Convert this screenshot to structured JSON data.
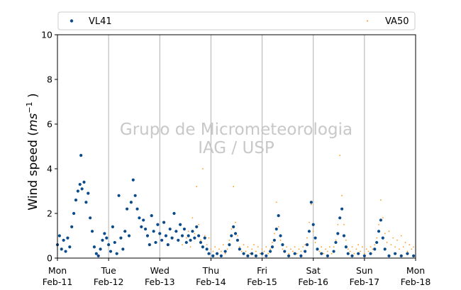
{
  "chart_data": {
    "type": "scatter",
    "ylabel_text": "Wind speed (",
    "ylabel_unit_base": "ms",
    "ylabel_unit_exp": "−1",
    "ylabel_close": " )",
    "ylim": [
      0,
      10
    ],
    "y_ticks": [
      "0",
      "2",
      "4",
      "6",
      "8",
      "10"
    ],
    "x_range_days": [
      0,
      7
    ],
    "x_ticks": [
      {
        "day": 0,
        "line1": "Mon",
        "line2": "Feb-11"
      },
      {
        "day": 1,
        "line1": "Tue",
        "line2": "Feb-12"
      },
      {
        "day": 2,
        "line1": "Wed",
        "line2": "Feb-13"
      },
      {
        "day": 3,
        "line1": "Thu",
        "line2": "Feb-14"
      },
      {
        "day": 4,
        "line1": "Fri",
        "line2": "Feb-15"
      },
      {
        "day": 5,
        "line1": "Sat",
        "line2": "Feb-16"
      },
      {
        "day": 6,
        "line1": "Sun",
        "line2": "Feb-17"
      },
      {
        "day": 7,
        "line1": "Mon",
        "line2": "Feb-18"
      }
    ],
    "grid": "vertical",
    "legend_position": "top",
    "watermark_line1": "Grupo de Micrometeorologia",
    "watermark_line2": "IAG / USP",
    "series": [
      {
        "name": "VL41",
        "color": "#0b4a8b",
        "marker": "dot-large",
        "points": [
          [
            0.0,
            0.6
          ],
          [
            0.04,
            1.0
          ],
          [
            0.08,
            0.4
          ],
          [
            0.12,
            0.8
          ],
          [
            0.16,
            0.3
          ],
          [
            0.2,
            0.9
          ],
          [
            0.24,
            0.5
          ],
          [
            0.28,
            1.4
          ],
          [
            0.32,
            2.0
          ],
          [
            0.36,
            2.6
          ],
          [
            0.4,
            3.0
          ],
          [
            0.44,
            3.3
          ],
          [
            0.46,
            4.6
          ],
          [
            0.48,
            3.1
          ],
          [
            0.52,
            3.4
          ],
          [
            0.56,
            2.5
          ],
          [
            0.6,
            2.9
          ],
          [
            0.64,
            1.8
          ],
          [
            0.68,
            1.2
          ],
          [
            0.72,
            0.5
          ],
          [
            0.76,
            0.2
          ],
          [
            0.8,
            0.1
          ],
          [
            0.84,
            0.4
          ],
          [
            0.88,
            0.8
          ],
          [
            0.92,
            1.1
          ],
          [
            0.96,
            0.9
          ],
          [
            1.0,
            0.6
          ],
          [
            1.04,
            0.3
          ],
          [
            1.08,
            1.4
          ],
          [
            1.12,
            0.7
          ],
          [
            1.16,
            0.2
          ],
          [
            1.2,
            2.8
          ],
          [
            1.24,
            0.9
          ],
          [
            1.28,
            0.4
          ],
          [
            1.32,
            1.2
          ],
          [
            1.36,
            2.2
          ],
          [
            1.4,
            1.0
          ],
          [
            1.44,
            2.5
          ],
          [
            1.48,
            3.5
          ],
          [
            1.52,
            2.8
          ],
          [
            1.56,
            2.2
          ],
          [
            1.6,
            1.8
          ],
          [
            1.64,
            1.4
          ],
          [
            1.68,
            1.7
          ],
          [
            1.72,
            1.3
          ],
          [
            1.76,
            1.0
          ],
          [
            1.8,
            0.6
          ],
          [
            1.84,
            1.9
          ],
          [
            1.88,
            1.2
          ],
          [
            1.92,
            0.7
          ],
          [
            1.96,
            1.5
          ],
          [
            2.0,
            1.1
          ],
          [
            2.04,
            0.8
          ],
          [
            2.08,
            1.6
          ],
          [
            2.12,
            1.0
          ],
          [
            2.16,
            0.6
          ],
          [
            2.2,
            1.3
          ],
          [
            2.24,
            0.9
          ],
          [
            2.28,
            2.0
          ],
          [
            2.32,
            1.2
          ],
          [
            2.36,
            0.8
          ],
          [
            2.4,
            1.5
          ],
          [
            2.44,
            1.0
          ],
          [
            2.48,
            1.3
          ],
          [
            2.52,
            0.7
          ],
          [
            2.56,
            1.0
          ],
          [
            2.6,
            0.8
          ],
          [
            2.64,
            1.2
          ],
          [
            2.68,
            0.9
          ],
          [
            2.72,
            1.4
          ],
          [
            2.76,
            1.0
          ],
          [
            2.8,
            0.7
          ],
          [
            2.84,
            0.5
          ],
          [
            2.88,
            0.9
          ],
          [
            2.92,
            0.4
          ],
          [
            2.96,
            0.2
          ],
          [
            3.04,
            0.1
          ],
          [
            3.12,
            0.2
          ],
          [
            3.2,
            0.1
          ],
          [
            3.28,
            0.3
          ],
          [
            3.36,
            0.6
          ],
          [
            3.4,
            1.0
          ],
          [
            3.44,
            1.4
          ],
          [
            3.48,
            1.1
          ],
          [
            3.52,
            0.8
          ],
          [
            3.56,
            0.4
          ],
          [
            3.64,
            0.2
          ],
          [
            3.72,
            0.1
          ],
          [
            3.8,
            0.2
          ],
          [
            3.88,
            0.1
          ],
          [
            4.0,
            0.2
          ],
          [
            4.08,
            0.1
          ],
          [
            4.16,
            0.3
          ],
          [
            4.2,
            0.5
          ],
          [
            4.24,
            0.8
          ],
          [
            4.28,
            1.3
          ],
          [
            4.32,
            1.9
          ],
          [
            4.36,
            1.0
          ],
          [
            4.4,
            0.6
          ],
          [
            4.44,
            0.3
          ],
          [
            4.52,
            0.1
          ],
          [
            4.64,
            0.2
          ],
          [
            4.76,
            0.1
          ],
          [
            4.84,
            0.3
          ],
          [
            4.88,
            0.6
          ],
          [
            4.92,
            1.2
          ],
          [
            4.96,
            2.5
          ],
          [
            5.0,
            1.5
          ],
          [
            5.04,
            0.9
          ],
          [
            5.08,
            0.4
          ],
          [
            5.16,
            0.2
          ],
          [
            5.28,
            0.1
          ],
          [
            5.4,
            0.3
          ],
          [
            5.44,
            0.7
          ],
          [
            5.48,
            1.1
          ],
          [
            5.52,
            1.8
          ],
          [
            5.56,
            2.2
          ],
          [
            5.6,
            1.0
          ],
          [
            5.64,
            0.5
          ],
          [
            5.68,
            0.2
          ],
          [
            5.76,
            0.1
          ],
          [
            5.88,
            0.2
          ],
          [
            6.0,
            0.1
          ],
          [
            6.12,
            0.2
          ],
          [
            6.2,
            0.4
          ],
          [
            6.24,
            0.7
          ],
          [
            6.28,
            1.2
          ],
          [
            6.32,
            1.7
          ],
          [
            6.36,
            0.9
          ],
          [
            6.4,
            0.4
          ],
          [
            6.48,
            0.1
          ],
          [
            6.6,
            0.2
          ],
          [
            6.72,
            0.1
          ],
          [
            6.84,
            0.2
          ],
          [
            6.96,
            0.1
          ]
        ]
      },
      {
        "name": "VA50",
        "color": "#ff9a1a",
        "marker": "dot-small",
        "points": [
          [
            2.44,
            0.6
          ],
          [
            2.52,
            0.9
          ],
          [
            2.56,
            1.2
          ],
          [
            2.6,
            0.5
          ],
          [
            2.64,
            1.8
          ],
          [
            2.68,
            1.1
          ],
          [
            2.72,
            3.2
          ],
          [
            2.76,
            1.5
          ],
          [
            2.8,
            0.8
          ],
          [
            2.84,
            4.0
          ],
          [
            2.88,
            1.0
          ],
          [
            2.92,
            0.6
          ],
          [
            2.96,
            0.9
          ],
          [
            3.0,
            0.4
          ],
          [
            3.04,
            0.3
          ],
          [
            3.08,
            0.5
          ],
          [
            3.12,
            0.2
          ],
          [
            3.16,
            0.4
          ],
          [
            3.2,
            0.3
          ],
          [
            3.24,
            0.6
          ],
          [
            3.28,
            0.2
          ],
          [
            3.32,
            0.4
          ],
          [
            3.36,
            0.8
          ],
          [
            3.4,
            1.3
          ],
          [
            3.44,
            3.2
          ],
          [
            3.48,
            1.6
          ],
          [
            3.52,
            1.0
          ],
          [
            3.56,
            0.5
          ],
          [
            3.6,
            0.3
          ],
          [
            3.64,
            0.6
          ],
          [
            3.68,
            0.3
          ],
          [
            3.72,
            0.5
          ],
          [
            3.76,
            0.2
          ],
          [
            3.8,
            0.4
          ],
          [
            3.84,
            0.6
          ],
          [
            3.88,
            0.3
          ],
          [
            3.92,
            0.5
          ],
          [
            3.96,
            0.2
          ],
          [
            4.0,
            0.4
          ],
          [
            4.04,
            0.3
          ],
          [
            4.08,
            0.5
          ],
          [
            4.12,
            0.2
          ],
          [
            4.16,
            0.4
          ],
          [
            4.2,
            0.7
          ],
          [
            4.24,
            1.1
          ],
          [
            4.28,
            2.5
          ],
          [
            4.32,
            1.4
          ],
          [
            4.36,
            0.8
          ],
          [
            4.4,
            0.4
          ],
          [
            4.44,
            0.3
          ],
          [
            4.48,
            0.5
          ],
          [
            4.52,
            0.2
          ],
          [
            4.56,
            0.4
          ],
          [
            4.6,
            0.3
          ],
          [
            4.64,
            0.5
          ],
          [
            4.68,
            0.2
          ],
          [
            4.72,
            0.4
          ],
          [
            4.76,
            0.3
          ],
          [
            4.8,
            0.5
          ],
          [
            4.84,
            0.6
          ],
          [
            4.88,
            0.9
          ],
          [
            4.92,
            1.6
          ],
          [
            4.96,
            2.4
          ],
          [
            5.0,
            1.2
          ],
          [
            5.04,
            0.7
          ],
          [
            5.08,
            0.4
          ],
          [
            5.12,
            0.3
          ],
          [
            5.16,
            0.5
          ],
          [
            5.2,
            0.2
          ],
          [
            5.24,
            0.4
          ],
          [
            5.28,
            0.3
          ],
          [
            5.32,
            0.5
          ],
          [
            5.36,
            0.2
          ],
          [
            5.4,
            0.5
          ],
          [
            5.44,
            0.8
          ],
          [
            5.48,
            1.5
          ],
          [
            5.52,
            4.6
          ],
          [
            5.56,
            2.8
          ],
          [
            5.6,
            1.5
          ],
          [
            5.64,
            0.8
          ],
          [
            5.68,
            0.4
          ],
          [
            5.72,
            0.3
          ],
          [
            5.76,
            0.5
          ],
          [
            5.8,
            0.2
          ],
          [
            5.84,
            0.4
          ],
          [
            5.88,
            0.6
          ],
          [
            5.92,
            0.3
          ],
          [
            5.96,
            0.5
          ],
          [
            6.0,
            0.2
          ],
          [
            6.04,
            0.4
          ],
          [
            6.08,
            0.3
          ],
          [
            6.12,
            0.5
          ],
          [
            6.16,
            0.4
          ],
          [
            6.2,
            0.6
          ],
          [
            6.24,
            0.9
          ],
          [
            6.28,
            1.5
          ],
          [
            6.32,
            2.6
          ],
          [
            6.36,
            1.8
          ],
          [
            6.4,
            1.1
          ],
          [
            6.44,
            0.7
          ],
          [
            6.48,
            1.2
          ],
          [
            6.52,
            0.6
          ],
          [
            6.56,
            0.9
          ],
          [
            6.6,
            0.5
          ],
          [
            6.64,
            0.8
          ],
          [
            6.68,
            0.4
          ],
          [
            6.72,
            1.0
          ],
          [
            6.76,
            0.5
          ],
          [
            6.8,
            0.7
          ],
          [
            6.84,
            0.3
          ],
          [
            6.88,
            0.6
          ],
          [
            6.92,
            0.4
          ],
          [
            6.96,
            0.5
          ]
        ]
      }
    ]
  }
}
